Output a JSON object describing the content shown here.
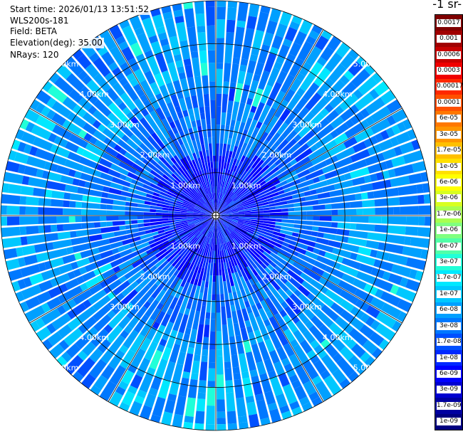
{
  "header": {
    "start_time": "Start time: 2026/01/13 13:51:52",
    "instrument": "WLS200s-181",
    "field": "Field: BETA",
    "elevation": "Elevation(deg): 35.00",
    "nrays": "NRays: 120"
  },
  "units_title": "-1 sr-",
  "chart_data": {
    "type": "heatmap",
    "projection": "polar-ppi",
    "field": "BETA",
    "elevation_deg": 35.0,
    "n_rays": 120,
    "max_range_km": 5.0,
    "range_ring_labels": [
      "1.00km",
      "2.00km",
      "3.00km",
      "4.00km",
      "5.00km"
    ],
    "range_ring_km": [
      1,
      2,
      3,
      4,
      5
    ],
    "colorbar": {
      "ticks": [
        "0.0017",
        "0.001",
        "0.0006",
        "0.0003",
        "0.00017",
        "0.0001",
        "6e-05",
        "3e-05",
        "1.7e-05",
        "1e-05",
        "6e-06",
        "3e-06",
        "1.7e-06",
        "1e-06",
        "6e-07",
        "3e-07",
        "1.7e-07",
        "1e-07",
        "6e-08",
        "3e-08",
        "1.7e-08",
        "1e-08",
        "6e-09",
        "3e-09",
        "1.7e-09",
        "1e-09"
      ],
      "colors": [
        "#7f0000",
        "#a00000",
        "#c80000",
        "#f00000",
        "#ff2800",
        "#ff5000",
        "#ff7800",
        "#ff9600",
        "#ffc000",
        "#ffe000",
        "#ffff00",
        "#d8ff20",
        "#a8ff50",
        "#80ff80",
        "#50ffa8",
        "#20ffd8",
        "#00e8ff",
        "#00c8ff",
        "#00a0ff",
        "#0078ff",
        "#0050ff",
        "#0028ff",
        "#0000ff",
        "#0000d0",
        "#0000a0",
        "#000080"
      ]
    },
    "dominant_value_range": [
      "1e-09",
      "6e-08"
    ]
  }
}
